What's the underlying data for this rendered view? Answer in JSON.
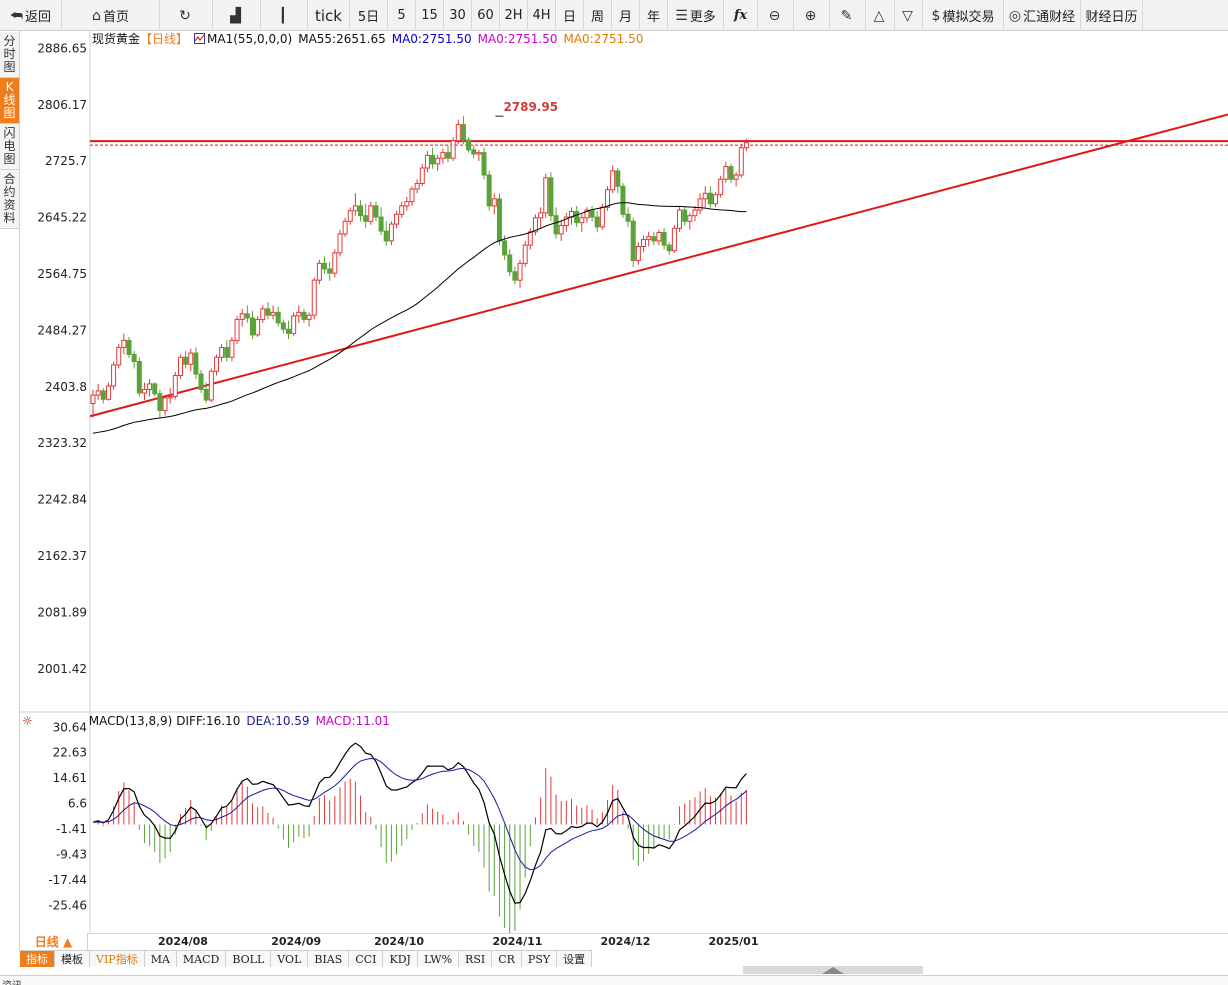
{
  "toolbar": {
    "items": [
      {
        "id": "back",
        "icon": "back-arrow-icon",
        "label": "返回"
      },
      {
        "id": "home",
        "icon": "home-icon",
        "label": "首页"
      },
      {
        "id": "refresh",
        "icon": "refresh-icon",
        "label": ""
      },
      {
        "id": "indicator",
        "icon": "bar-chart-icon",
        "label": ""
      },
      {
        "id": "candle",
        "icon": "candlestick-icon",
        "label": ""
      },
      {
        "id": "tick",
        "icon": "",
        "label": "tick"
      },
      {
        "id": "p5d",
        "icon": "",
        "label": "5日"
      },
      {
        "id": "m5",
        "icon": "",
        "label": "5"
      },
      {
        "id": "m15",
        "icon": "",
        "label": "15"
      },
      {
        "id": "m30",
        "icon": "",
        "label": "30"
      },
      {
        "id": "m60",
        "icon": "",
        "label": "60"
      },
      {
        "id": "h2",
        "icon": "",
        "label": "2H"
      },
      {
        "id": "h4",
        "icon": "",
        "label": "4H"
      },
      {
        "id": "day",
        "icon": "",
        "label": "日"
      },
      {
        "id": "week",
        "icon": "",
        "label": "周"
      },
      {
        "id": "month",
        "icon": "",
        "label": "月"
      },
      {
        "id": "year",
        "icon": "",
        "label": "年"
      },
      {
        "id": "more",
        "icon": "menu-icon",
        "label": "更多"
      },
      {
        "id": "fx",
        "icon": "",
        "label": "fx"
      },
      {
        "id": "zoom-out",
        "icon": "zoom-out-icon",
        "label": ""
      },
      {
        "id": "zoom-in",
        "icon": "zoom-in-icon",
        "label": ""
      },
      {
        "id": "draw",
        "icon": "pen-icon",
        "label": ""
      },
      {
        "id": "up",
        "icon": "triangle-up-icon",
        "label": ""
      },
      {
        "id": "down",
        "icon": "triangle-down-icon",
        "label": ""
      },
      {
        "id": "sim",
        "icon": "dollar-icon",
        "label": "模拟交易"
      },
      {
        "id": "fx168",
        "icon": "circle-logo-icon",
        "label": "汇通财经"
      },
      {
        "id": "calendar",
        "icon": "",
        "label": "财经日历"
      }
    ]
  },
  "left_tabs": [
    {
      "id": "timeshare",
      "label": "分时图",
      "active": false
    },
    {
      "id": "kline",
      "label": "K线图",
      "active": true
    },
    {
      "id": "flash",
      "label": "闪电图",
      "active": false
    },
    {
      "id": "contract",
      "label": "合约资料",
      "active": false
    }
  ],
  "legend": {
    "name": "现货黄金",
    "period": "【日线】",
    "ma1": "MA1(55,0,0,0)",
    "ma55": "MA55:2651.65",
    "ma0a": "MA0:2751.50",
    "ma0b": "MA0:2751.50",
    "ma0c": "MA0:2751.50"
  },
  "macd_legend": {
    "params": "MACD(13,8,9)",
    "diff": "DIFF:16.10",
    "dea": "DEA:10.59",
    "macd": "MACD:11.01"
  },
  "colors": {
    "up": "#e23a3a",
    "down": "#5aa338",
    "ma55": "#000000",
    "trend": "#e01818",
    "diff_line": "#000000",
    "dea_line": "#1a1a9c",
    "macd_purple": "#cc00cc",
    "ma0_blue": "#0000cc",
    "ma0_orange": "#e07b00",
    "period_orange": "#f07c1a"
  },
  "bottom": {
    "period_label": "日线 ▲",
    "indicator_tabs": [
      {
        "label": "指标",
        "active": true,
        "vip": false
      },
      {
        "label": "模板",
        "active": false,
        "vip": false
      },
      {
        "label": "VIP指标",
        "active": false,
        "vip": true
      },
      {
        "label": "MA",
        "active": false,
        "vip": false
      },
      {
        "label": "MACD",
        "active": false,
        "vip": false
      },
      {
        "label": "BOLL",
        "active": false,
        "vip": false
      },
      {
        "label": "VOL",
        "active": false,
        "vip": false
      },
      {
        "label": "BIAS",
        "active": false,
        "vip": false
      },
      {
        "label": "CCI",
        "active": false,
        "vip": false
      },
      {
        "label": "KDJ",
        "active": false,
        "vip": false
      },
      {
        "label": "LW%",
        "active": false,
        "vip": false
      },
      {
        "label": "RSI",
        "active": false,
        "vip": false
      },
      {
        "label": "CR",
        "active": false,
        "vip": false
      },
      {
        "label": "PSY",
        "active": false,
        "vip": false
      },
      {
        "label": "设置",
        "active": false,
        "vip": false
      }
    ],
    "footer_text": "资讯"
  },
  "chart_data": [
    {
      "type": "candlestick",
      "title": "现货黄金",
      "yticks": [
        2886.65,
        2806.17,
        2725.7,
        2645.22,
        2564.75,
        2484.27,
        2403.8,
        2323.32,
        2242.84,
        2162.37,
        2081.89,
        2001.42
      ],
      "ylim": [
        1941.3,
        2911.5
      ],
      "xticks": [
        "2024/08",
        "2024/09",
        "2024/10",
        "2024/11",
        "2024/12",
        "2025/01"
      ],
      "xtick_index": [
        14,
        36,
        56,
        79,
        100,
        121
      ],
      "max_annotation": {
        "label": "2789.95",
        "value": 2789.95,
        "index": 79
      },
      "horizontal_level": 2751.5,
      "trendline": {
        "from": {
          "index": 0,
          "value": 2363
        },
        "to": {
          "index": 186,
          "value": 2725
        }
      },
      "ohlc": [
        [
          2380,
          2400,
          2360,
          2392
        ],
        [
          2392,
          2408,
          2385,
          2398
        ],
        [
          2398,
          2402,
          2380,
          2386
        ],
        [
          2386,
          2410,
          2384,
          2405
        ],
        [
          2405,
          2440,
          2400,
          2435
        ],
        [
          2435,
          2465,
          2430,
          2460
        ],
        [
          2460,
          2480,
          2450,
          2470
        ],
        [
          2470,
          2475,
          2445,
          2450
        ],
        [
          2450,
          2455,
          2430,
          2440
        ],
        [
          2440,
          2446,
          2390,
          2395
        ],
        [
          2395,
          2410,
          2385,
          2400
        ],
        [
          2400,
          2415,
          2390,
          2408
        ],
        [
          2408,
          2410,
          2390,
          2394
        ],
        [
          2394,
          2400,
          2360,
          2370
        ],
        [
          2370,
          2392,
          2363,
          2388
        ],
        [
          2388,
          2402,
          2380,
          2390
        ],
        [
          2390,
          2425,
          2386,
          2420
        ],
        [
          2420,
          2450,
          2415,
          2446
        ],
        [
          2446,
          2455,
          2430,
          2436
        ],
        [
          2436,
          2458,
          2426,
          2452
        ],
        [
          2452,
          2460,
          2415,
          2422
        ],
        [
          2422,
          2428,
          2395,
          2400
        ],
        [
          2400,
          2410,
          2380,
          2385
        ],
        [
          2385,
          2430,
          2382,
          2426
        ],
        [
          2426,
          2450,
          2420,
          2446
        ],
        [
          2446,
          2465,
          2440,
          2460
        ],
        [
          2460,
          2470,
          2440,
          2446
        ],
        [
          2446,
          2475,
          2440,
          2470
        ],
        [
          2470,
          2505,
          2465,
          2500
        ],
        [
          2500,
          2515,
          2490,
          2508
        ],
        [
          2508,
          2520,
          2495,
          2502
        ],
        [
          2502,
          2512,
          2472,
          2478
        ],
        [
          2478,
          2505,
          2475,
          2500
        ],
        [
          2500,
          2520,
          2495,
          2515
        ],
        [
          2515,
          2525,
          2500,
          2506
        ],
        [
          2506,
          2520,
          2500,
          2510
        ],
        [
          2510,
          2518,
          2490,
          2495
        ],
        [
          2495,
          2500,
          2480,
          2486
        ],
        [
          2486,
          2498,
          2472,
          2480
        ],
        [
          2480,
          2510,
          2476,
          2505
        ],
        [
          2505,
          2520,
          2495,
          2510
        ],
        [
          2510,
          2515,
          2495,
          2500
        ],
        [
          2500,
          2510,
          2490,
          2506
        ],
        [
          2506,
          2560,
          2500,
          2556
        ],
        [
          2556,
          2585,
          2550,
          2580
        ],
        [
          2580,
          2590,
          2565,
          2572
        ],
        [
          2572,
          2582,
          2555,
          2566
        ],
        [
          2566,
          2600,
          2560,
          2595
        ],
        [
          2595,
          2628,
          2590,
          2622
        ],
        [
          2622,
          2645,
          2618,
          2640
        ],
        [
          2640,
          2660,
          2635,
          2655
        ],
        [
          2655,
          2680,
          2648,
          2662
        ],
        [
          2662,
          2670,
          2640,
          2648
        ],
        [
          2648,
          2665,
          2630,
          2640
        ],
        [
          2640,
          2668,
          2635,
          2662
        ],
        [
          2662,
          2668,
          2640,
          2646
        ],
        [
          2646,
          2660,
          2620,
          2626
        ],
        [
          2626,
          2640,
          2605,
          2612
        ],
        [
          2612,
          2640,
          2606,
          2636
        ],
        [
          2636,
          2655,
          2630,
          2650
        ],
        [
          2650,
          2668,
          2645,
          2662
        ],
        [
          2662,
          2675,
          2655,
          2668
        ],
        [
          2668,
          2690,
          2662,
          2686
        ],
        [
          2686,
          2700,
          2680,
          2694
        ],
        [
          2694,
          2722,
          2690,
          2716
        ],
        [
          2716,
          2740,
          2710,
          2734
        ],
        [
          2734,
          2745,
          2715,
          2722
        ],
        [
          2722,
          2735,
          2712,
          2730
        ],
        [
          2730,
          2744,
          2722,
          2738
        ],
        [
          2738,
          2748,
          2724,
          2730
        ],
        [
          2730,
          2760,
          2726,
          2755
        ],
        [
          2755,
          2785,
          2750,
          2778
        ],
        [
          2778,
          2790,
          2750,
          2756
        ],
        [
          2756,
          2760,
          2738,
          2742
        ],
        [
          2742,
          2748,
          2730,
          2736
        ],
        [
          2736,
          2742,
          2726,
          2738
        ],
        [
          2738,
          2745,
          2700,
          2706
        ],
        [
          2706,
          2712,
          2655,
          2662
        ],
        [
          2662,
          2680,
          2650,
          2672
        ],
        [
          2672,
          2680,
          2605,
          2612
        ],
        [
          2612,
          2620,
          2585,
          2592
        ],
        [
          2592,
          2600,
          2562,
          2568
        ],
        [
          2568,
          2575,
          2550,
          2556
        ],
        [
          2556,
          2585,
          2545,
          2580
        ],
        [
          2580,
          2612,
          2575,
          2606
        ],
        [
          2606,
          2630,
          2600,
          2625
        ],
        [
          2625,
          2650,
          2620,
          2645
        ],
        [
          2645,
          2660,
          2630,
          2652
        ],
        [
          2652,
          2708,
          2645,
          2702
        ],
        [
          2702,
          2710,
          2640,
          2648
        ],
        [
          2648,
          2660,
          2615,
          2622
        ],
        [
          2622,
          2640,
          2612,
          2634
        ],
        [
          2634,
          2652,
          2625,
          2646
        ],
        [
          2646,
          2660,
          2635,
          2654
        ],
        [
          2654,
          2662,
          2632,
          2638
        ],
        [
          2638,
          2650,
          2625,
          2645
        ],
        [
          2645,
          2660,
          2638,
          2656
        ],
        [
          2656,
          2662,
          2640,
          2646
        ],
        [
          2646,
          2655,
          2625,
          2632
        ],
        [
          2632,
          2665,
          2628,
          2660
        ],
        [
          2660,
          2690,
          2655,
          2685
        ],
        [
          2685,
          2720,
          2680,
          2712
        ],
        [
          2712,
          2716,
          2680,
          2690
        ],
        [
          2690,
          2695,
          2645,
          2650
        ],
        [
          2650,
          2660,
          2632,
          2640
        ],
        [
          2640,
          2645,
          2575,
          2584
        ],
        [
          2584,
          2610,
          2578,
          2604
        ],
        [
          2604,
          2620,
          2596,
          2614
        ],
        [
          2614,
          2625,
          2604,
          2618
        ],
        [
          2618,
          2625,
          2606,
          2612
        ],
        [
          2612,
          2628,
          2606,
          2624
        ],
        [
          2624,
          2630,
          2600,
          2606
        ],
        [
          2606,
          2610,
          2592,
          2598
        ],
        [
          2598,
          2635,
          2595,
          2630
        ],
        [
          2630,
          2662,
          2625,
          2656
        ],
        [
          2656,
          2660,
          2634,
          2640
        ],
        [
          2640,
          2652,
          2628,
          2648
        ],
        [
          2648,
          2662,
          2640,
          2656
        ],
        [
          2656,
          2680,
          2650,
          2672
        ],
        [
          2672,
          2690,
          2660,
          2680
        ],
        [
          2680,
          2690,
          2660,
          2665
        ],
        [
          2665,
          2682,
          2660,
          2678
        ],
        [
          2678,
          2705,
          2674,
          2700
        ],
        [
          2700,
          2725,
          2695,
          2718
        ],
        [
          2718,
          2722,
          2695,
          2700
        ],
        [
          2700,
          2710,
          2690,
          2706
        ],
        [
          2706,
          2750,
          2702,
          2745
        ],
        [
          2745,
          2758,
          2740,
          2752
        ]
      ],
      "ma55_visible_from_index": 0,
      "series_colors_note": "up candles red, down candles green"
    },
    {
      "type": "macd",
      "yticks": [
        30.64,
        22.63,
        14.61,
        6.6,
        -1.41,
        -9.43,
        -17.44,
        -25.46
      ],
      "ylim": [
        -34.2,
        33.9
      ],
      "params": "MACD(13,8,9)",
      "diff_last": 16.1,
      "dea_last": 10.59,
      "macd_last": 11.01
    }
  ]
}
